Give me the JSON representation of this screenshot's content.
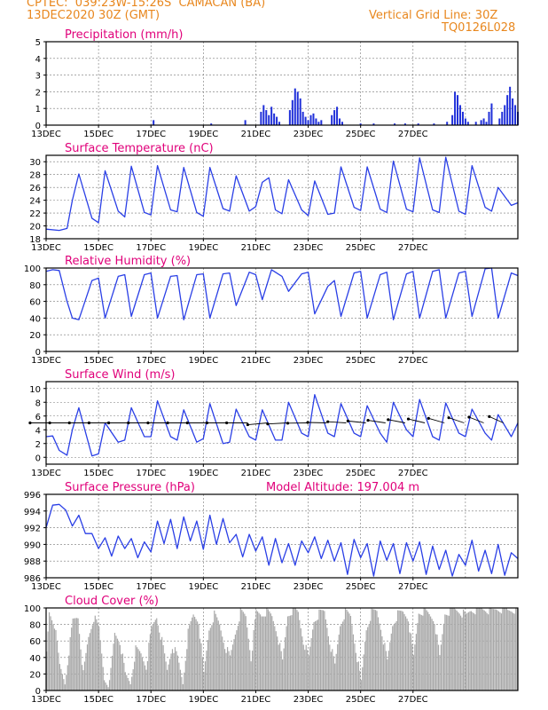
{
  "header": {
    "line1": "CPTEC:  039:23W-15:26S  CAMACAN (BA)",
    "line2": "13DEC2020 30Z (GMT)",
    "right1": "Vertical Grid Line: 30Z",
    "right2": "TQ0126L028"
  },
  "x_tick_labels": [
    "13DEC",
    "15DEC",
    "17DEC",
    "19DEC",
    "21DEC",
    "23DEC",
    "25DEC",
    "27DEC"
  ],
  "colors": {
    "line": "#2a3fe6",
    "bars": "#1f2fd9",
    "cloud": "#a9a9a9",
    "title": "#e0007a",
    "header": "#e8871e"
  },
  "panels": [
    {
      "title": "Precipitation (mm/h)",
      "extra": "",
      "ylim": [
        0,
        5
      ],
      "yticks": [
        0,
        1,
        2,
        3,
        4,
        5
      ]
    },
    {
      "title": "Surface Temperature (nC)",
      "extra": "",
      "ylim": [
        18,
        31
      ],
      "yticks": [
        18,
        20,
        22,
        24,
        26,
        28,
        30
      ]
    },
    {
      "title": "Relative Humidity (%)",
      "extra": "",
      "ylim": [
        0,
        100
      ],
      "yticks": [
        0,
        20,
        40,
        60,
        80,
        100
      ]
    },
    {
      "title": "Surface Wind (m/s)",
      "extra": "",
      "ylim": [
        -1,
        11
      ],
      "yticks": [
        0,
        2,
        4,
        6,
        8,
        10
      ]
    },
    {
      "title": "Surface Pressure (hPa)",
      "extra": "Model Altitude: 197.004 m",
      "ylim": [
        986,
        996
      ],
      "yticks": [
        986,
        988,
        990,
        992,
        994,
        996
      ]
    },
    {
      "title": "Cloud Cover (%)",
      "extra": "",
      "ylim": [
        0,
        100
      ],
      "yticks": [
        0,
        20,
        40,
        60,
        80,
        100
      ]
    }
  ],
  "chart_data": [
    {
      "type": "bar",
      "title": "Precipitation (mm/h)",
      "x_unit": "days since 13DEC 00Z",
      "ylim": [
        0,
        5
      ],
      "x": [
        4.1,
        6.3,
        7.6,
        8.2,
        8.3,
        8.4,
        8.5,
        8.6,
        8.7,
        8.8,
        8.9,
        9.3,
        9.4,
        9.5,
        9.6,
        9.7,
        9.8,
        9.9,
        10.0,
        10.1,
        10.2,
        10.3,
        10.4,
        10.5,
        10.9,
        11.0,
        11.1,
        11.2,
        11.3,
        12.0,
        12.5,
        13.3,
        13.7,
        14.2,
        14.8,
        15.3,
        15.5,
        15.6,
        15.7,
        15.8,
        15.9,
        16.0,
        16.1,
        16.4,
        16.6,
        16.7,
        16.8,
        16.9,
        17.0,
        17.3,
        17.4,
        17.5,
        17.6,
        17.7,
        17.8,
        17.9,
        18.0
      ],
      "values": [
        0.3,
        0.1,
        0.3,
        0.8,
        1.2,
        0.9,
        0.6,
        1.1,
        0.7,
        0.5,
        0.2,
        0.9,
        1.5,
        2.2,
        2.0,
        1.6,
        0.8,
        0.5,
        0.3,
        0.6,
        0.7,
        0.4,
        0.2,
        0.3,
        0.6,
        0.9,
        1.1,
        0.4,
        0.2,
        0.1,
        0.1,
        0.1,
        0.1,
        0.1,
        0.1,
        0.2,
        0.6,
        2.0,
        1.8,
        1.2,
        0.8,
        0.4,
        0.2,
        0.2,
        0.3,
        0.4,
        0.2,
        0.8,
        1.3,
        0.4,
        0.8,
        1.2,
        1.8,
        2.3,
        1.6,
        1.2,
        0.8
      ]
    },
    {
      "type": "line",
      "title": "Surface Temperature (nC)",
      "x_unit": "days since 13DEC 00Z",
      "ylim": [
        18,
        31
      ],
      "x": [
        0.0,
        0.5,
        0.8,
        1.0,
        1.25,
        1.75,
        2.0,
        2.25,
        2.75,
        3.0,
        3.25,
        3.75,
        4.0,
        4.25,
        4.75,
        5.0,
        5.25,
        5.75,
        6.0,
        6.25,
        6.75,
        7.0,
        7.25,
        7.75,
        8.0,
        8.25,
        8.5,
        8.75,
        9.0,
        9.25,
        9.75,
        10.0,
        10.25,
        10.75,
        11.0,
        11.25,
        11.75,
        12.0,
        12.25,
        12.75,
        13.0,
        13.25,
        13.75,
        14.0,
        14.25,
        14.75,
        15.0,
        15.25,
        15.75,
        16.0,
        16.25,
        16.75,
        17.0,
        17.25,
        17.75,
        18.0
      ],
      "values": [
        19.5,
        19.3,
        19.6,
        24.0,
        28.1,
        21.2,
        20.5,
        28.6,
        22.3,
        21.4,
        29.3,
        22.1,
        21.7,
        29.4,
        22.5,
        22.2,
        29.1,
        22.1,
        21.5,
        29.1,
        22.7,
        22.3,
        27.8,
        22.3,
        23.0,
        26.8,
        27.5,
        22.5,
        21.9,
        27.2,
        22.5,
        21.6,
        27.0,
        21.8,
        22.0,
        29.2,
        22.9,
        22.4,
        29.2,
        22.6,
        22.1,
        30.1,
        22.6,
        22.2,
        30.6,
        22.5,
        22.1,
        30.7,
        22.3,
        21.8,
        29.4,
        22.9,
        22.3,
        26.0,
        23.2,
        23.6
      ]
    },
    {
      "type": "line",
      "title": "Relative Humidity (%)",
      "x_unit": "days since 13DEC 00Z",
      "ylim": [
        0,
        100
      ],
      "x": [
        0.0,
        0.25,
        0.5,
        0.8,
        1.0,
        1.25,
        1.75,
        2.0,
        2.25,
        2.75,
        3.0,
        3.25,
        3.75,
        4.0,
        4.25,
        4.75,
        5.0,
        5.25,
        5.75,
        6.0,
        6.25,
        6.75,
        7.0,
        7.25,
        7.75,
        8.0,
        8.25,
        8.6,
        8.75,
        9.0,
        9.25,
        9.75,
        10.0,
        10.25,
        10.75,
        11.0,
        11.25,
        11.75,
        12.0,
        12.25,
        12.75,
        13.0,
        13.25,
        13.75,
        14.0,
        14.25,
        14.75,
        15.0,
        15.25,
        15.75,
        16.0,
        16.25,
        16.75,
        17.0,
        17.25,
        17.75,
        18.0
      ],
      "values": [
        96,
        98,
        97,
        60,
        40,
        38,
        85,
        88,
        40,
        90,
        92,
        42,
        92,
        94,
        40,
        90,
        91,
        38,
        92,
        93,
        40,
        93,
        94,
        55,
        95,
        92,
        62,
        98,
        95,
        90,
        72,
        93,
        95,
        45,
        78,
        85,
        42,
        94,
        96,
        40,
        92,
        95,
        38,
        93,
        96,
        40,
        96,
        98,
        40,
        94,
        96,
        42,
        99,
        100,
        40,
        94,
        91
      ]
    },
    {
      "type": "line",
      "title": "Surface Wind (m/s)",
      "x_unit": "days since 13DEC 00Z",
      "ylim": [
        -1,
        11
      ],
      "x": [
        0.0,
        0.25,
        0.5,
        0.8,
        1.0,
        1.25,
        1.75,
        2.0,
        2.25,
        2.75,
        3.0,
        3.25,
        3.75,
        4.0,
        4.25,
        4.75,
        5.0,
        5.25,
        5.75,
        6.0,
        6.25,
        6.75,
        7.0,
        7.25,
        7.75,
        8.0,
        8.25,
        8.75,
        9.0,
        9.25,
        9.75,
        10.0,
        10.25,
        10.75,
        11.0,
        11.25,
        11.75,
        12.0,
        12.25,
        12.75,
        13.0,
        13.25,
        13.75,
        14.0,
        14.25,
        14.75,
        15.0,
        15.25,
        15.75,
        16.0,
        16.25,
        16.75,
        17.0,
        17.25,
        17.75,
        18.0
      ],
      "values": [
        3.0,
        3.1,
        1.0,
        0.3,
        4.0,
        7.2,
        0.2,
        0.5,
        5.0,
        2.2,
        2.5,
        7.2,
        3.0,
        3.0,
        8.2,
        3.0,
        2.5,
        6.9,
        2.2,
        2.7,
        7.8,
        2.0,
        2.2,
        7.0,
        3.0,
        2.5,
        6.9,
        2.5,
        2.5,
        8.0,
        3.5,
        3.0,
        9.1,
        3.5,
        3.0,
        7.8,
        3.5,
        3.0,
        7.5,
        3.5,
        2.2,
        8.0,
        4.0,
        3.0,
        8.4,
        3.0,
        2.5,
        7.9,
        3.5,
        3.0,
        7.0,
        3.5,
        2.5,
        6.2,
        3.0,
        5.0
      ]
    },
    {
      "type": "line",
      "title": "Surface Pressure (hPa)",
      "x_unit": "days since 13DEC 00Z",
      "ylim": [
        986,
        996
      ],
      "x": [
        0.0,
        0.25,
        0.5,
        0.75,
        1.0,
        1.25,
        1.5,
        1.75,
        2.0,
        2.25,
        2.5,
        2.75,
        3.0,
        3.25,
        3.5,
        3.75,
        4.0,
        4.25,
        4.5,
        4.75,
        5.0,
        5.25,
        5.5,
        5.75,
        6.0,
        6.25,
        6.5,
        6.75,
        7.0,
        7.25,
        7.5,
        7.75,
        8.0,
        8.25,
        8.5,
        8.75,
        9.0,
        9.25,
        9.5,
        9.75,
        10.0,
        10.25,
        10.5,
        10.75,
        11.0,
        11.25,
        11.5,
        11.75,
        12.0,
        12.25,
        12.5,
        12.75,
        13.0,
        13.25,
        13.5,
        13.75,
        14.0,
        14.25,
        14.5,
        14.75,
        15.0,
        15.25,
        15.5,
        15.75,
        16.0,
        16.25,
        16.5,
        16.75,
        17.0,
        17.25,
        17.5,
        17.75,
        18.0
      ],
      "values": [
        992.0,
        994.7,
        994.8,
        994.1,
        992.2,
        993.5,
        991.3,
        991.3,
        989.5,
        990.8,
        988.6,
        991.0,
        989.5,
        990.7,
        988.4,
        990.3,
        989.1,
        992.8,
        990.1,
        993.0,
        989.5,
        993.3,
        990.4,
        992.8,
        989.4,
        993.5,
        990.0,
        993.1,
        990.2,
        991.2,
        988.5,
        991.2,
        989.2,
        990.9,
        987.5,
        990.7,
        987.8,
        990.1,
        987.5,
        990.4,
        989.0,
        990.9,
        988.3,
        990.5,
        988.0,
        990.2,
        986.4,
        990.6,
        988.4,
        990.1,
        986.2,
        990.4,
        988.1,
        990.1,
        986.5,
        990.2,
        988.0,
        990.3,
        986.4,
        989.8,
        987.0,
        989.3,
        986.2,
        988.8,
        987.5,
        990.5,
        986.8,
        989.3,
        986.5,
        990.0,
        986.3,
        989.0,
        988.3
      ]
    },
    {
      "type": "area",
      "title": "Cloud Cover (%)",
      "x_unit": "days since 13DEC 00Z",
      "ylim": [
        0,
        100
      ],
      "x": [
        0.0,
        0.1,
        0.3,
        0.5,
        0.7,
        0.9,
        1.0,
        1.2,
        1.4,
        1.6,
        1.8,
        2.0,
        2.2,
        2.4,
        2.6,
        2.8,
        3.0,
        3.2,
        3.4,
        3.6,
        3.8,
        4.0,
        4.2,
        4.4,
        4.6,
        4.8,
        5.0,
        5.2,
        5.4,
        5.6,
        5.8,
        6.0,
        6.2,
        6.4,
        6.6,
        6.8,
        7.0,
        7.2,
        7.4,
        7.6,
        7.8,
        8.0,
        8.2,
        8.4,
        8.6,
        8.8,
        9.0,
        9.2,
        9.4,
        9.6,
        9.8,
        10.0,
        10.2,
        10.4,
        10.6,
        10.8,
        11.0,
        11.2,
        11.4,
        11.6,
        11.8,
        12.0,
        12.2,
        12.4,
        12.6,
        12.8,
        13.0,
        13.2,
        13.4,
        13.6,
        13.8,
        14.0,
        14.2,
        14.4,
        14.6,
        14.8,
        15.0,
        15.2,
        15.4,
        15.6,
        15.8,
        16.0,
        16.2,
        16.4,
        16.6,
        16.8,
        17.0,
        17.2,
        17.4,
        17.6,
        17.8,
        18.0
      ],
      "values": [
        45,
        95,
        80,
        30,
        10,
        60,
        85,
        90,
        20,
        65,
        88,
        75,
        15,
        8,
        70,
        60,
        20,
        10,
        50,
        45,
        30,
        75,
        90,
        60,
        25,
        55,
        40,
        10,
        70,
        92,
        85,
        20,
        75,
        92,
        80,
        55,
        40,
        70,
        95,
        90,
        40,
        95,
        92,
        96,
        90,
        70,
        35,
        92,
        98,
        95,
        60,
        40,
        85,
        93,
        96,
        60,
        30,
        80,
        95,
        90,
        50,
        10,
        75,
        94,
        96,
        70,
        35,
        80,
        92,
        95,
        88,
        40,
        95,
        96,
        92,
        85,
        40,
        94,
        96,
        98,
        95,
        90,
        98,
        97,
        99,
        98,
        96,
        99,
        98,
        97,
        98,
        99
      ]
    }
  ]
}
